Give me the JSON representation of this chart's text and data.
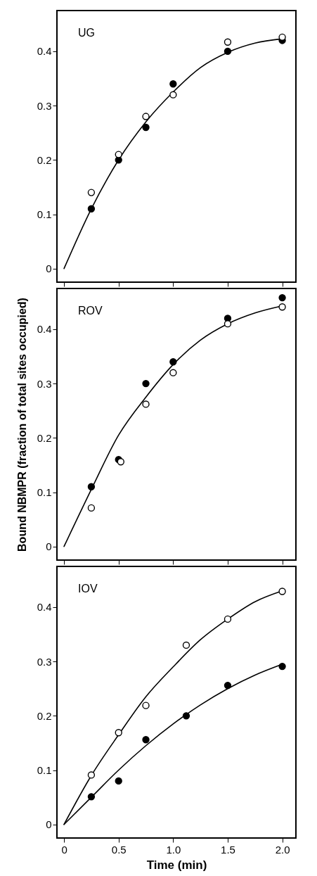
{
  "chart_data": [
    {
      "type": "scatter",
      "annotations": [
        "UG"
      ],
      "xlim": [
        -0.065,
        2.125
      ],
      "xticks": [
        0,
        0.5,
        1,
        1.5,
        2
      ],
      "ylim": [
        -0.025,
        0.475
      ],
      "yticks": [
        0,
        0.1,
        0.2,
        0.3,
        0.4
      ],
      "tick_labels": "y",
      "grid": false,
      "series": [
        {
          "type": "line",
          "color": "#000000",
          "x": [
            0,
            0.25,
            0.5,
            0.75,
            1.0,
            1.25,
            1.5,
            1.75,
            2.0
          ],
          "values": [
            0,
            0.11,
            0.2,
            0.27,
            0.325,
            0.37,
            0.398,
            0.415,
            0.423
          ]
        },
        {
          "marker": "circle",
          "color": "#000000",
          "x": [
            0.25,
            0.5,
            0.75,
            1.0,
            1.5,
            2.0
          ],
          "values": [
            0.11,
            0.2,
            0.26,
            0.34,
            0.4,
            0.42
          ]
        },
        {
          "marker": "circle",
          "color": "#ffffff",
          "x": [
            0.25,
            0.5,
            0.75,
            1.0,
            1.5,
            2.0
          ],
          "values": [
            0.14,
            0.21,
            0.28,
            0.32,
            0.417,
            0.426
          ]
        }
      ]
    },
    {
      "type": "scatter",
      "annotations": [
        "ROV"
      ],
      "ylabel": "Bound NBMPR (fraction of total sites occupied)",
      "xlim": [
        -0.065,
        2.125
      ],
      "xticks": [
        0,
        0.5,
        1,
        1.5,
        2
      ],
      "ylim": [
        -0.025,
        0.475
      ],
      "yticks": [
        0,
        0.1,
        0.2,
        0.3,
        0.4
      ],
      "tick_labels": "y",
      "grid": false,
      "series": [
        {
          "type": "line",
          "color": "#000000",
          "x": [
            0,
            0.25,
            0.5,
            0.75,
            1.0,
            1.25,
            1.5,
            1.75,
            2.0
          ],
          "values": [
            0,
            0.105,
            0.205,
            0.275,
            0.335,
            0.38,
            0.41,
            0.43,
            0.443
          ]
        },
        {
          "marker": "circle",
          "color": "#000000",
          "x": [
            0.25,
            0.5,
            0.75,
            1.0,
            1.5,
            2.0
          ],
          "values": [
            0.11,
            0.16,
            0.3,
            0.34,
            0.42,
            0.458
          ]
        },
        {
          "marker": "circle",
          "color": "#ffffff",
          "x": [
            0.25,
            0.52,
            0.75,
            1.0,
            1.5,
            2.0
          ],
          "values": [
            0.071,
            0.156,
            0.262,
            0.32,
            0.41,
            0.441
          ]
        }
      ]
    },
    {
      "type": "scatter",
      "annotations": [
        "IOV"
      ],
      "xlabel": "Time (min)",
      "xlim": [
        -0.065,
        2.125
      ],
      "xticks": [
        0,
        0.5,
        {
          "value": 1,
          "label": "1.0"
        },
        1.5,
        {
          "value": 2,
          "label": "2.0"
        }
      ],
      "ylim": [
        -0.025,
        0.475
      ],
      "yticks": [
        0,
        0.1,
        0.2,
        0.3,
        0.4
      ],
      "grid": false,
      "series": [
        {
          "type": "line",
          "color": "#000000",
          "x": [
            0,
            0.25,
            0.5,
            0.75,
            1.0,
            1.25,
            1.5,
            1.75,
            2.0
          ],
          "values": [
            0,
            0.09,
            0.165,
            0.235,
            0.29,
            0.34,
            0.378,
            0.41,
            0.43
          ]
        },
        {
          "type": "line",
          "color": "#000000",
          "x": [
            0,
            0.25,
            0.5,
            0.75,
            1.0,
            1.25,
            1.5,
            1.75,
            2.0
          ],
          "values": [
            0,
            0.05,
            0.1,
            0.145,
            0.185,
            0.22,
            0.25,
            0.275,
            0.295
          ]
        },
        {
          "marker": "circle",
          "color": "#ffffff",
          "x": [
            0.25,
            0.5,
            0.75,
            1.12,
            1.5,
            2.0
          ],
          "values": [
            0.091,
            0.169,
            0.219,
            0.33,
            0.378,
            0.429
          ]
        },
        {
          "marker": "circle",
          "color": "#000000",
          "x": [
            0.25,
            0.5,
            0.75,
            1.12,
            1.5,
            2.0
          ],
          "values": [
            0.051,
            0.08,
            0.156,
            0.2,
            0.256,
            0.291
          ]
        }
      ]
    }
  ]
}
